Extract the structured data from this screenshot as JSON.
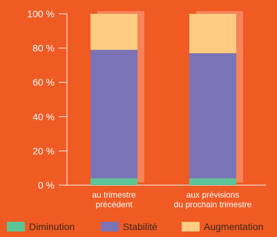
{
  "chart_data": {
    "type": "bar",
    "stacked": true,
    "categories": [
      "au trimestre précédent",
      "aux prévisions du prochain trimestre"
    ],
    "category_lines": [
      [
        "au trimestre",
        "précédent"
      ],
      [
        "aux prévisions",
        "du prochain trimestre"
      ]
    ],
    "series": [
      {
        "name": "Diminution",
        "values": [
          4,
          4
        ],
        "color": "#5cc596"
      },
      {
        "name": "Stabilité",
        "values": [
          75,
          73
        ],
        "color": "#7a74b6"
      },
      {
        "name": "Augmentation",
        "values": [
          21,
          23
        ],
        "color": "#ffcb80"
      }
    ],
    "y_ticks": [
      0,
      20,
      40,
      60,
      80,
      100
    ],
    "y_tick_labels": [
      "0 %",
      "20 %",
      "40 %",
      "60 %",
      "80 %",
      "100 %"
    ],
    "ylim": [
      0,
      100
    ],
    "grid": false,
    "legend_position": "bottom",
    "colors": {
      "background": "#f05a23",
      "axis": "#ffffff",
      "bar_shadow": "#f7835a",
      "text": "#ffffff",
      "legend_text": "#3b2a1a"
    }
  }
}
